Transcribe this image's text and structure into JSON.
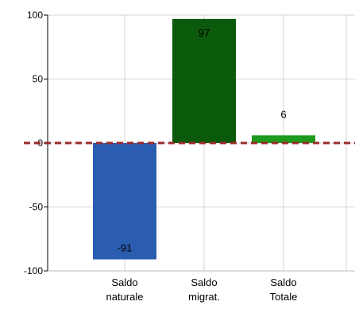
{
  "chart_data": {
    "type": "bar",
    "title": "",
    "xlabel": "",
    "ylabel": "",
    "categories": [
      [
        "Saldo",
        "naturale"
      ],
      [
        "Saldo",
        "migrat."
      ],
      [
        "Saldo",
        "Totale"
      ]
    ],
    "values": [
      -91,
      97,
      6
    ],
    "value_labels": [
      "-91",
      "97",
      "6"
    ],
    "colors": [
      "#2a5db0",
      "#0b5a0b",
      "#1f9a1f"
    ],
    "ylim": [
      -100,
      100
    ],
    "yticks": [
      100,
      50,
      0,
      -50,
      -100
    ],
    "ytick_labels": [
      "100",
      "50",
      "0",
      "-50",
      "-100"
    ],
    "grid": true,
    "baseline_color": "#9b2a2a"
  }
}
